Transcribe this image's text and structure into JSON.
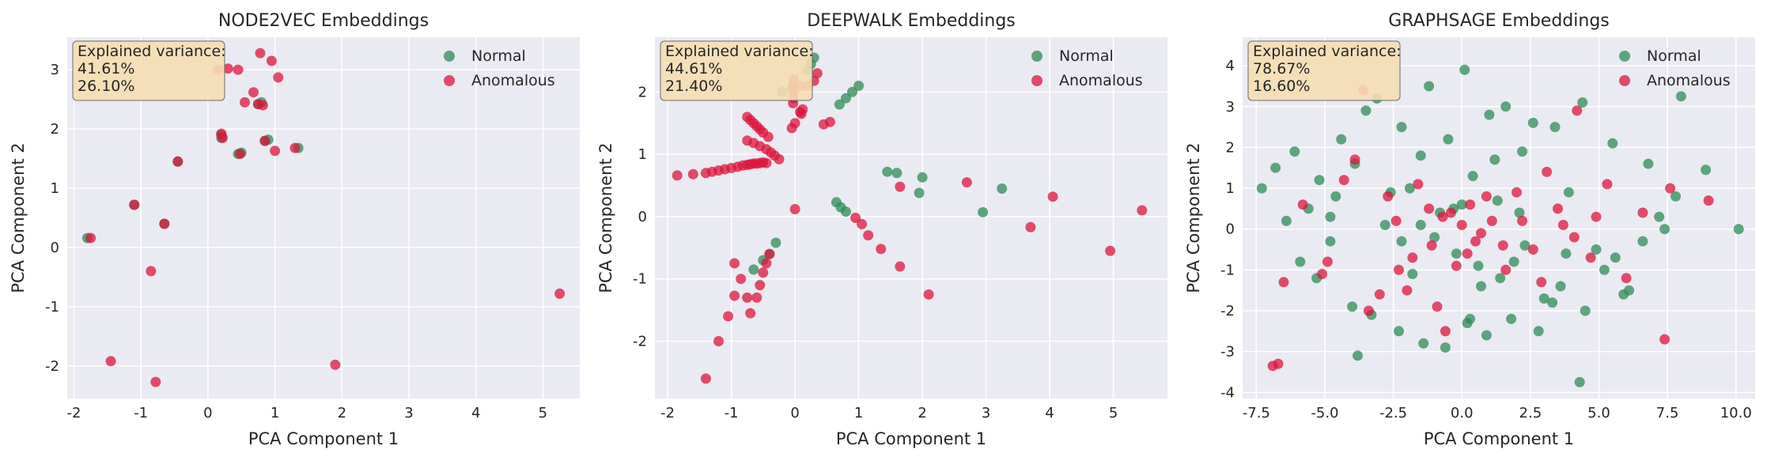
{
  "figure": {
    "width": 2234,
    "height": 583
  },
  "legend": {
    "normal": "Normal",
    "anomalous": "Anomalous"
  },
  "colors": {
    "normal": "#2e8b57",
    "anomalous": "#dc143c",
    "panel_bg": "#eaeaf2",
    "box_bg": "#f5deb3"
  },
  "chart_data": [
    {
      "type": "scatter",
      "title": "NODE2VEC Embeddings",
      "xlabel": "PCA Component 1",
      "ylabel": "PCA Component 2",
      "xlim": [
        -2.1,
        5.55
      ],
      "ylim": [
        -2.55,
        3.55
      ],
      "xticks": [
        -2,
        -1,
        0,
        1,
        2,
        3,
        4,
        5
      ],
      "xtick_labels": [
        "-2",
        "-1",
        "0",
        "1",
        "2",
        "3",
        "4",
        "5"
      ],
      "yticks": [
        -2,
        -1,
        0,
        1,
        2,
        3
      ],
      "ytick_labels": [
        "-2",
        "-1",
        "0",
        "1",
        "2",
        "3"
      ],
      "grid": true,
      "legend_position": "top-right",
      "explained_variance": {
        "label": "Explained variance:",
        "pc1": "41.61%",
        "pc2": "26.10%"
      },
      "series": [
        {
          "name": "Normal",
          "x": [
            0.2,
            0.2,
            0.85,
            0.9,
            0.45,
            0.5,
            1.35,
            -0.45,
            -1.1,
            -0.65,
            -1.8,
            0.75,
            0.8
          ],
          "y": [
            1.9,
            1.85,
            1.8,
            1.82,
            1.58,
            1.6,
            1.68,
            1.45,
            0.72,
            0.4,
            0.16,
            2.42,
            2.45
          ]
        },
        {
          "name": "Anomalous",
          "x": [
            0.78,
            0.95,
            1.05,
            0.3,
            0.45,
            0.68,
            0.55,
            0.75,
            0.82,
            0.2,
            0.22,
            1.0,
            0.85,
            0.48,
            1.3,
            -0.45,
            -1.1,
            -0.65,
            -1.75,
            -0.85,
            -1.45,
            -0.78,
            1.9,
            5.25,
            0.15
          ],
          "y": [
            3.28,
            3.15,
            2.87,
            3.02,
            3.0,
            2.62,
            2.45,
            2.42,
            2.4,
            1.92,
            1.85,
            1.63,
            1.8,
            1.58,
            1.68,
            1.45,
            0.72,
            0.4,
            0.16,
            -0.4,
            -1.92,
            -2.27,
            -1.98,
            -0.78,
            3.0
          ]
        }
      ]
    },
    {
      "type": "scatter",
      "title": "DEEPWALK Embeddings",
      "xlabel": "PCA Component 1",
      "ylabel": "PCA Component 2",
      "xlim": [
        -2.2,
        5.85
      ],
      "ylim": [
        -2.92,
        2.88
      ],
      "xticks": [
        -2,
        -1,
        0,
        1,
        2,
        3,
        4,
        5
      ],
      "xtick_labels": [
        "-2",
        "-1",
        "0",
        "1",
        "2",
        "3",
        "4",
        "5"
      ],
      "yticks": [
        -2,
        -1,
        0,
        1,
        2
      ],
      "ytick_labels": [
        "-2",
        "-1",
        "0",
        "1",
        "2"
      ],
      "grid": true,
      "legend_position": "top-right",
      "explained_variance": {
        "label": "Explained variance:",
        "pc1": "44.61%",
        "pc2": "21.40%"
      },
      "series": [
        {
          "name": "Normal",
          "x": [
            0.3,
            0.25,
            0.2,
            0.7,
            0.8,
            0.9,
            1.0,
            1.45,
            1.6,
            2.0,
            1.95,
            0.65,
            0.72,
            0.8,
            3.25,
            2.95,
            -0.3,
            -0.4,
            -0.5,
            -0.65,
            -0.2
          ],
          "y": [
            2.55,
            2.45,
            2.35,
            1.8,
            1.9,
            2.0,
            2.1,
            0.72,
            0.7,
            0.63,
            0.38,
            0.23,
            0.15,
            0.08,
            0.45,
            0.07,
            -0.42,
            -0.6,
            -0.7,
            -0.85,
            2.0
          ]
        },
        {
          "name": "Anomalous",
          "x": [
            -1.85,
            -1.6,
            -1.4,
            -1.3,
            -1.2,
            -1.1,
            -1.0,
            -0.9,
            -0.82,
            -0.75,
            -0.7,
            -0.65,
            -0.6,
            -0.55,
            -0.5,
            -0.45,
            -0.75,
            -0.7,
            -0.65,
            -0.6,
            -0.55,
            -0.5,
            -0.42,
            -0.75,
            -0.65,
            -0.55,
            -0.45,
            -0.38,
            -0.32,
            -0.25,
            0.45,
            0.55,
            0.12,
            0.08,
            0.0,
            -0.05,
            0.08,
            -0.05,
            0.2,
            0.3,
            0.35,
            0.1,
            0.0,
            -0.02,
            -0.03,
            -0.02,
            -0.02,
            -0.03,
            1.65,
            2.7,
            4.05,
            3.7,
            5.45,
            4.95,
            0.95,
            1.05,
            1.15,
            1.35,
            1.65,
            2.1,
            -0.95,
            -1.05,
            -1.2,
            -1.4,
            -0.6,
            -0.55,
            -0.5,
            -0.45,
            -0.4,
            -0.7,
            -0.75,
            -0.85,
            -0.95
          ],
          "y": [
            0.66,
            0.68,
            0.7,
            0.72,
            0.74,
            0.76,
            0.78,
            0.8,
            0.82,
            0.83,
            0.84,
            0.85,
            0.85,
            0.86,
            0.87,
            0.86,
            1.6,
            1.55,
            1.5,
            1.45,
            1.4,
            1.35,
            1.28,
            1.22,
            1.18,
            1.13,
            1.08,
            1.03,
            0.98,
            0.92,
            1.48,
            1.52,
            1.72,
            1.68,
            1.5,
            1.42,
            2.1,
            2.05,
            2.1,
            2.18,
            2.3,
            1.65,
            0.12,
            2.2,
            2.1,
            2.0,
            1.9,
            1.82,
            0.48,
            0.55,
            0.32,
            -0.17,
            0.1,
            -0.55,
            -0.02,
            -0.12,
            -0.3,
            -0.52,
            -0.8,
            -1.25,
            -1.27,
            -1.6,
            -2.0,
            -2.6,
            -1.3,
            -1.1,
            -0.9,
            -0.75,
            -0.6,
            -1.55,
            -1.3,
            -1.0,
            -0.75
          ]
        }
      ]
    },
    {
      "type": "scatter",
      "title": "GRAPHSAGE Embeddings",
      "xlabel": "PCA Component 1",
      "ylabel": "PCA Component 2",
      "xlim": [
        -8.0,
        10.7
      ],
      "ylim": [
        -4.15,
        4.7
      ],
      "xticks": [
        -7.5,
        -5.0,
        -2.5,
        0.0,
        2.5,
        5.0,
        7.5,
        10.0
      ],
      "xtick_labels": [
        "-7.5",
        "-5.0",
        "-2.5",
        "0.0",
        "2.5",
        "5.0",
        "7.5",
        "10.0"
      ],
      "yticks": [
        -4,
        -3,
        -2,
        -1,
        0,
        1,
        2,
        3,
        4
      ],
      "ytick_labels": [
        "-4",
        "-3",
        "-2",
        "-1",
        "0",
        "1",
        "2",
        "3",
        "4"
      ],
      "grid": true,
      "legend_position": "top-right",
      "explained_variance": {
        "label": "Explained variance:",
        "pc1": "78.67%",
        "pc2": "16.60%"
      },
      "series": [
        {
          "name": "Normal",
          "x": [
            -7.3,
            -6.8,
            -6.1,
            -5.6,
            -5.2,
            -4.8,
            -4.4,
            -3.9,
            -3.5,
            -3.1,
            -2.6,
            -2.2,
            -1.8,
            -1.5,
            -1.2,
            -0.8,
            -0.5,
            -0.2,
            0.1,
            0.4,
            0.7,
            1.0,
            1.3,
            1.6,
            1.9,
            2.2,
            2.6,
            3.0,
            3.4,
            3.9,
            4.4,
            4.9,
            5.5,
            6.1,
            6.8,
            7.4,
            8.0,
            8.9,
            10.1,
            -6.4,
            -5.9,
            -5.3,
            -4.6,
            -4.0,
            -3.3,
            -2.8,
            -2.3,
            -1.9,
            -1.4,
            -1.0,
            -0.6,
            -0.3,
            0.2,
            0.6,
            0.9,
            1.4,
            1.8,
            2.3,
            2.8,
            3.3,
            3.8,
            4.5,
            5.2,
            5.9,
            6.6,
            7.2,
            -3.8,
            0.3,
            4.3,
            -1.5,
            2.1,
            -2.2,
            1.2,
            3.6,
            0.0,
            -4.8,
            5.6,
            7.8
          ],
          "y": [
            1.0,
            1.5,
            1.9,
            0.5,
            1.2,
            -0.3,
            2.2,
            1.6,
            2.9,
            3.2,
            0.9,
            2.5,
            -1.1,
            1.8,
            3.5,
            0.4,
            2.2,
            -0.6,
            3.9,
            1.3,
            -1.4,
            2.8,
            0.7,
            3.0,
            -0.8,
            1.9,
            2.6,
            -1.7,
            2.5,
            0.9,
            3.1,
            -0.5,
            2.1,
            -1.5,
            1.6,
            0.0,
            3.25,
            1.45,
            0.0,
            0.2,
            -0.8,
            -1.2,
            0.8,
            -1.9,
            -2.1,
            0.1,
            -2.5,
            1.0,
            -2.8,
            -0.2,
            -2.9,
            0.5,
            -2.3,
            -0.9,
            -2.6,
            -1.2,
            -2.2,
            -0.4,
            -2.5,
            -1.8,
            -0.6,
            -2.0,
            -1.0,
            -1.6,
            -0.3,
            0.3,
            -3.1,
            -2.2,
            -3.75,
            0.1,
            0.4,
            -0.3,
            1.7,
            -1.4,
            0.6,
            0.3,
            -0.7,
            0.8
          ]
        },
        {
          "name": "Anomalous",
          "x": [
            -3.6,
            -6.9,
            -6.7,
            -6.5,
            -5.1,
            -4.3,
            -3.4,
            -2.7,
            -2.0,
            -1.6,
            -1.1,
            -0.7,
            -0.2,
            0.3,
            0.7,
            1.1,
            1.6,
            2.0,
            2.6,
            3.1,
            3.7,
            4.2,
            4.7,
            5.3,
            6.0,
            6.6,
            7.4,
            7.6,
            9.0,
            -5.8,
            -4.9,
            -3.9,
            -3.0,
            -2.4,
            -1.8,
            -1.2,
            -0.9,
            -0.4,
            0.0,
            0.5,
            0.9,
            1.5,
            2.2,
            2.9,
            3.5,
            4.1,
            4.9,
            -2.3,
            0.2,
            -0.6
          ],
          "y": [
            3.4,
            -3.35,
            -3.3,
            -1.3,
            -1.1,
            1.2,
            -2.0,
            0.8,
            -1.5,
            1.1,
            -0.4,
            0.3,
            -0.9,
            0.6,
            -0.1,
            0.2,
            -1.0,
            0.9,
            -0.5,
            1.4,
            0.1,
            2.9,
            -0.7,
            1.1,
            -1.2,
            0.4,
            -2.7,
            1.0,
            0.7,
            0.6,
            -0.8,
            1.7,
            -1.6,
            0.2,
            -0.7,
            0.5,
            -1.9,
            0.4,
            0.1,
            -0.3,
            0.8,
            -0.4,
            0.2,
            -1.3,
            0.5,
            -0.2,
            0.3,
            -1.0,
            -0.6,
            -2.5
          ]
        }
      ]
    }
  ]
}
